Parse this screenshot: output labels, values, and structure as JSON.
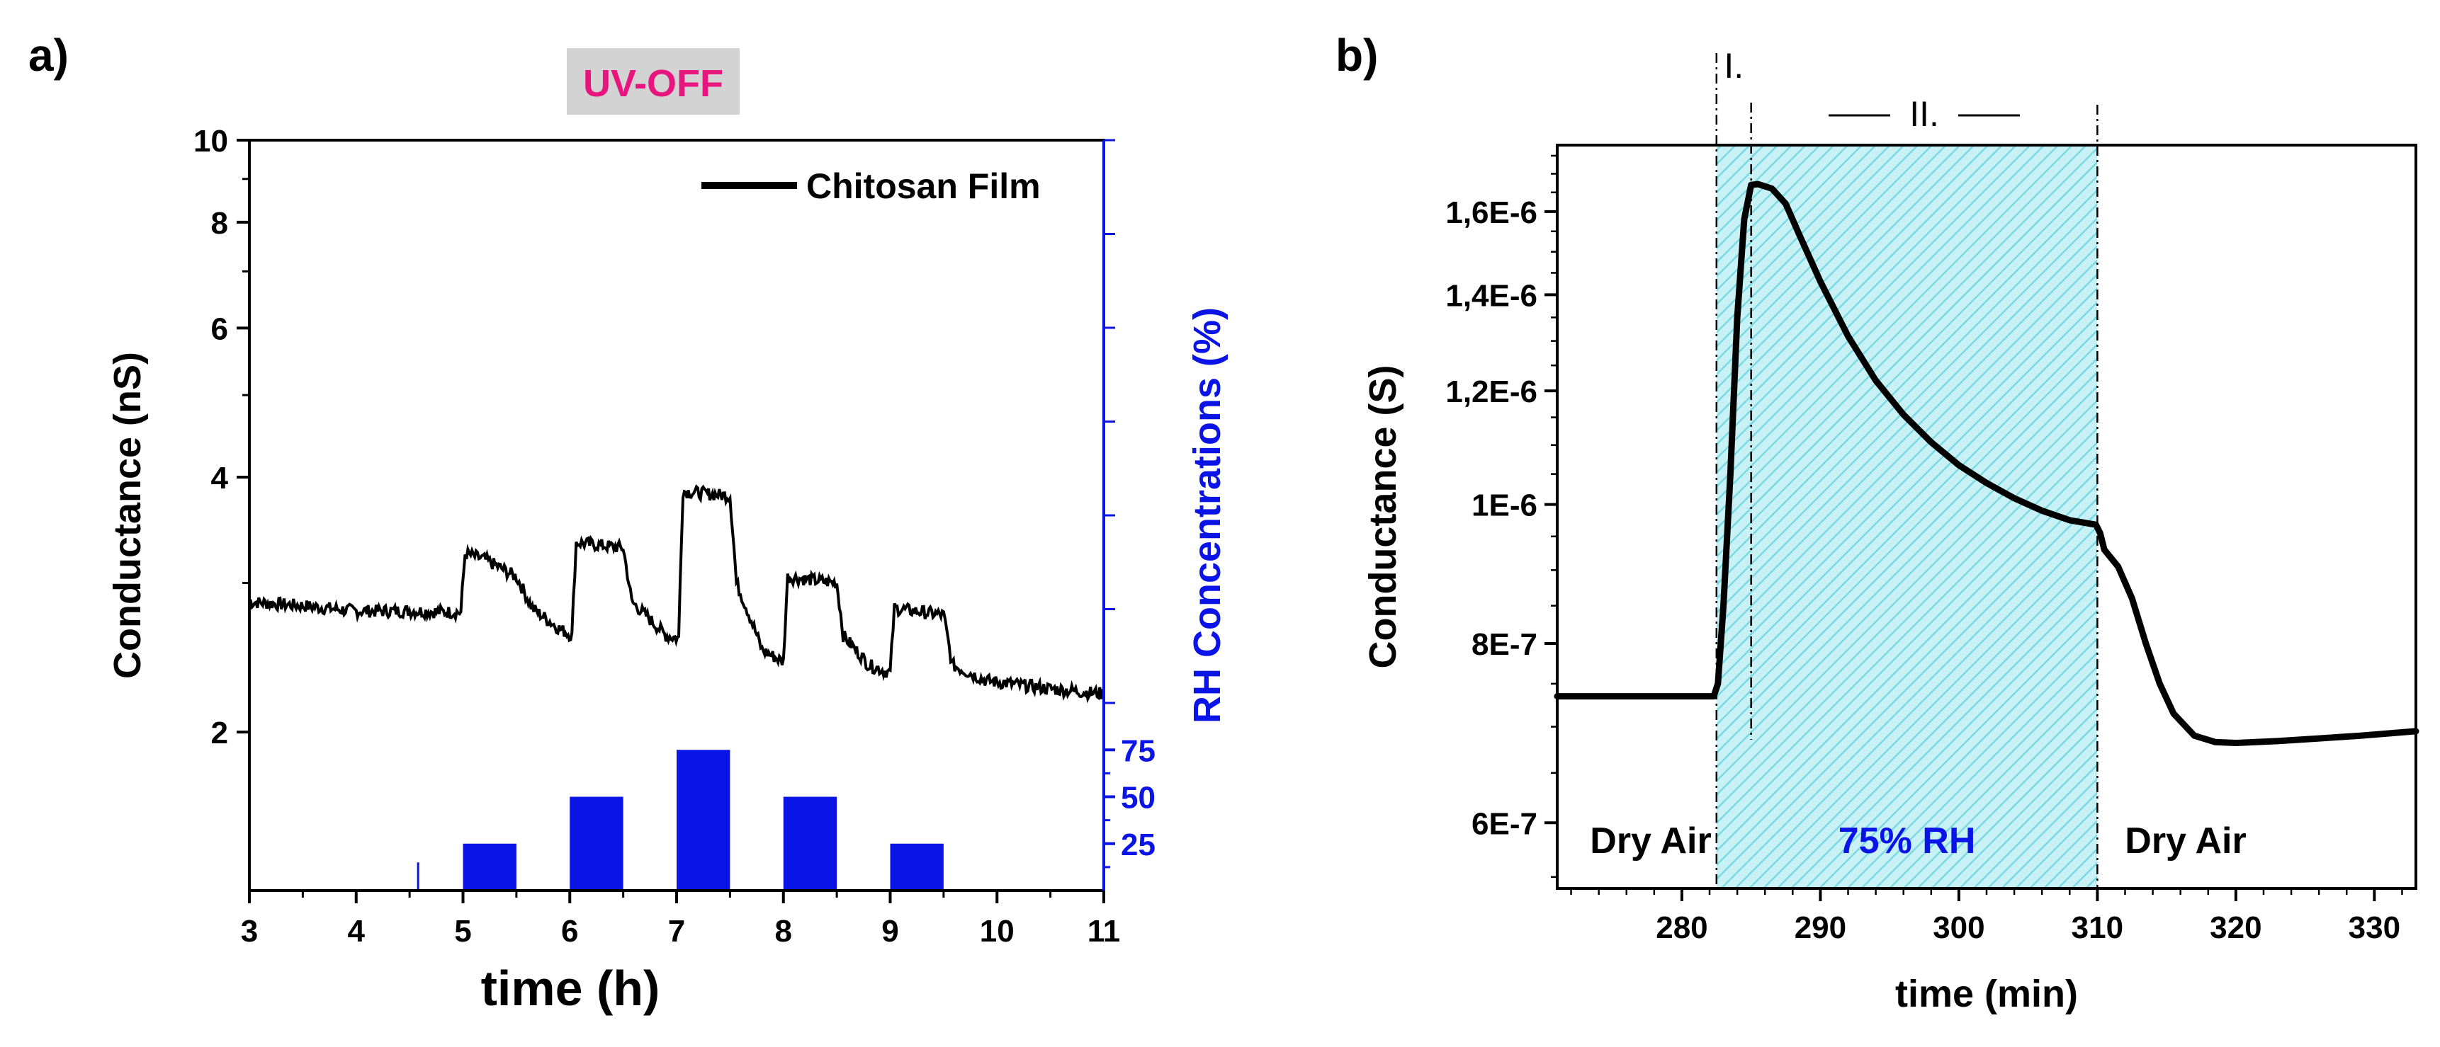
{
  "colors": {
    "black": "#000000",
    "blue": "#0a14e6",
    "pink": "#e8157f",
    "badge_bg": "#d3d3d3",
    "hatch_fill": "#c8f1f5",
    "hatch_line": "#7ad9e2"
  },
  "chart_data": [
    {
      "panel": "a)",
      "type": "line",
      "badge": "UV-OFF",
      "xlabel": "time (h)",
      "ylabel": "Conductance (nS)",
      "y2label": "RH Concentrations (%)",
      "xlim": [
        3,
        11
      ],
      "ylim": [
        1.3,
        10
      ],
      "yscale": "log",
      "xticks": [
        3,
        4,
        5,
        6,
        7,
        8,
        9,
        10,
        11
      ],
      "yticks": [
        2,
        4,
        6,
        8,
        10
      ],
      "y2lim": [
        0,
        400
      ],
      "y2ticks": [
        25,
        50,
        75
      ],
      "legend": [
        "Chitosan Film"
      ],
      "series": [
        {
          "name": "Chitosan Film",
          "x": [
            3.0,
            3.5,
            4.0,
            4.5,
            4.98,
            5.02,
            5.2,
            5.5,
            5.65,
            5.9,
            6.02,
            6.06,
            6.5,
            6.58,
            6.9,
            7.02,
            7.06,
            7.5,
            7.56,
            7.8,
            8.0,
            8.04,
            8.5,
            8.56,
            8.8,
            9.0,
            9.04,
            9.5,
            9.58,
            9.9,
            10.5,
            11.0
          ],
          "y": [
            2.85,
            2.82,
            2.78,
            2.78,
            2.77,
            3.25,
            3.2,
            3.05,
            2.8,
            2.65,
            2.6,
            3.35,
            3.3,
            2.85,
            2.6,
            2.58,
            3.85,
            3.8,
            3.0,
            2.5,
            2.42,
            3.05,
            3.0,
            2.6,
            2.4,
            2.35,
            2.8,
            2.75,
            2.4,
            2.3,
            2.25,
            2.22
          ]
        },
        {
          "name": "RH pulses",
          "axis": "right",
          "bars": [
            {
              "start": 4.57,
              "end": 4.59,
              "value": 15
            },
            {
              "start": 5.0,
              "end": 5.5,
              "value": 25
            },
            {
              "start": 6.0,
              "end": 6.5,
              "value": 50
            },
            {
              "start": 7.0,
              "end": 7.5,
              "value": 75
            },
            {
              "start": 8.0,
              "end": 8.5,
              "value": 50
            },
            {
              "start": 9.0,
              "end": 9.5,
              "value": 25
            }
          ]
        }
      ]
    },
    {
      "panel": "b)",
      "type": "line",
      "xlabel": "time (min)",
      "ylabel": "Conductance (S)",
      "xlim": [
        271,
        333
      ],
      "ylim": [
        5.4e-07,
        1.78e-06
      ],
      "yscale": "log",
      "xticks": [
        280,
        290,
        300,
        310,
        320,
        330
      ],
      "ytick_values": [
        6e-07,
        8e-07,
        1e-06,
        1.2e-06,
        1.4e-06,
        1.6e-06
      ],
      "ytick_labels": [
        "6E-7",
        "8E-7",
        "1E-6",
        "1,2E-6",
        "1,4E-6",
        "1,6E-6"
      ],
      "regions": [
        {
          "label": "Dry Air",
          "start": 271,
          "end": 282.5
        },
        {
          "label": "75% RH",
          "start": 282.5,
          "end": 310,
          "shaded": true
        },
        {
          "label": "Dry Air",
          "start": 310,
          "end": 333
        }
      ],
      "phases": [
        {
          "label": "I.",
          "start": 282.5,
          "end": 285
        },
        {
          "label": "II.",
          "start": 285,
          "end": 310
        }
      ],
      "series": [
        {
          "name": "Conductance",
          "x": [
            271,
            276,
            280,
            282.3,
            282.6,
            283.0,
            283.5,
            284.0,
            284.5,
            285.0,
            285.5,
            286.5,
            287.5,
            288.5,
            290,
            292,
            294,
            296,
            298,
            300,
            302,
            304,
            306,
            308,
            309.9,
            310.2,
            310.5,
            311.5,
            312.5,
            313.5,
            314.5,
            315.5,
            317,
            318.5,
            320,
            323,
            326,
            329,
            333
          ],
          "y": [
            7.35e-07,
            7.35e-07,
            7.35e-07,
            7.35e-07,
            7.5e-07,
            8.5e-07,
            1.05e-06,
            1.35e-06,
            1.58e-06,
            1.67e-06,
            1.672e-06,
            1.66e-06,
            1.62e-06,
            1.54e-06,
            1.43e-06,
            1.31e-06,
            1.22e-06,
            1.155e-06,
            1.105e-06,
            1.065e-06,
            1.035e-06,
            1.01e-06,
            9.9e-07,
            9.75e-07,
            9.68e-07,
            9.55e-07,
            9.3e-07,
            9.05e-07,
            8.6e-07,
            8e-07,
            7.5e-07,
            7.15e-07,
            6.9e-07,
            6.83e-07,
            6.82e-07,
            6.84e-07,
            6.87e-07,
            6.9e-07,
            6.95e-07
          ]
        }
      ]
    }
  ]
}
